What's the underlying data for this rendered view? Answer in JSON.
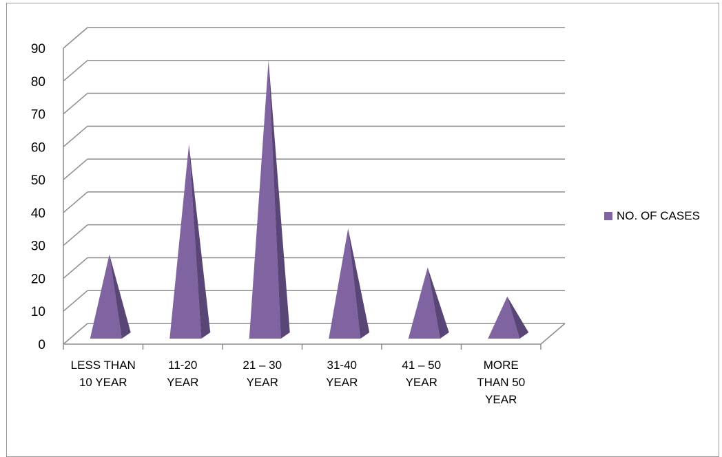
{
  "chart_data": {
    "type": "bar",
    "style": "3d-pyramid",
    "categories": [
      "LESS THAN 10 YEAR",
      "11-20 YEAR",
      "21 – 30 YEAR",
      "31-40 YEAR",
      "41 – 50 YEAR",
      "MORE THAN 50 YEAR"
    ],
    "category_lines": [
      [
        "LESS THAN",
        "10 YEAR"
      ],
      [
        "11-20",
        "YEAR"
      ],
      [
        "21 – 30",
        "YEAR"
      ],
      [
        "31-40",
        "YEAR"
      ],
      [
        "41 – 50",
        "YEAR"
      ],
      [
        "MORE",
        "THAN 50",
        "YEAR"
      ]
    ],
    "series": [
      {
        "name": "NO. OF CASES",
        "values": [
          26,
          60,
          86,
          34,
          22,
          13
        ],
        "color": "#8064a2"
      }
    ],
    "ylim": [
      0,
      90
    ],
    "yticks": [
      0,
      10,
      20,
      30,
      40,
      50,
      60,
      70,
      80,
      90
    ],
    "grid": true,
    "legend_position": "right"
  }
}
